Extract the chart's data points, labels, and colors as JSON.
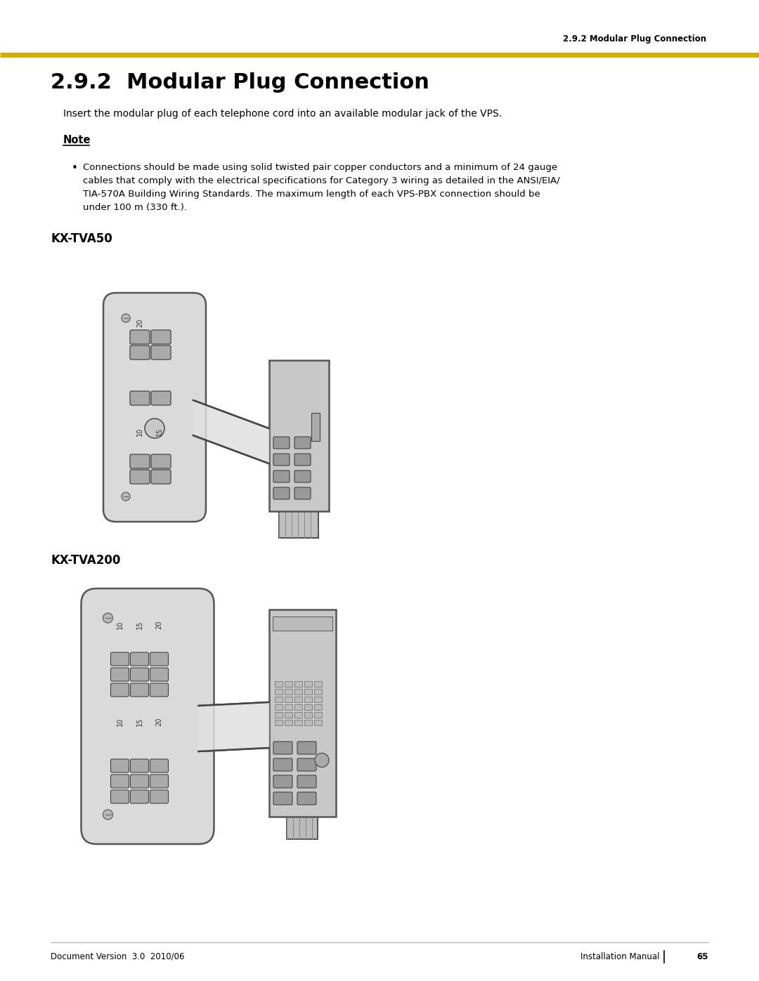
{
  "page_title": "2.9.2  Modular Plug Connection",
  "header_section_label": "2.9.2 Modular Plug Connection",
  "top_line_color": "#D4AC00",
  "bg_color": "#FFFFFF",
  "title_fontsize": 22,
  "header_label_fontsize": 9,
  "body_fontsize": 10,
  "note_fontsize": 10,
  "section_label_fontsize": 12,
  "footer_left": "Document Version  3.0  2010/06",
  "footer_right": "Installation Manual",
  "footer_page": "65",
  "intro_text": "Insert the modular plug of each telephone cord into an available modular jack of the VPS.",
  "note_label": "Note",
  "note_lines": [
    "Connections should be made using solid twisted pair copper conductors and a minimum of 24 gauge",
    "cables that comply with the electrical specifications for Category 3 wiring as detailed in the ANSI/EIA/",
    "TIA-570A Building Wiring Standards. The maximum length of each VPS-PBX connection should be",
    "under 100 m (330 ft.)."
  ],
  "subsection1": "KX-TVA50",
  "subsection2": "KX-TVA200"
}
